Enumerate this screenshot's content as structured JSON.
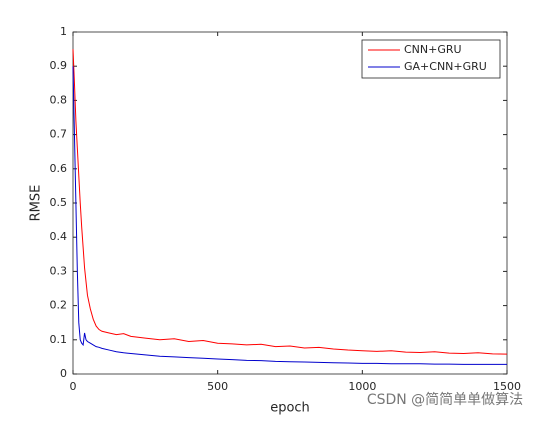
{
  "chart_data": {
    "type": "line",
    "x_label": "epoch",
    "y_label": "RMSE",
    "x": [
      0,
      5,
      10,
      15,
      20,
      25,
      30,
      35,
      40,
      45,
      50,
      60,
      70,
      80,
      90,
      100,
      125,
      150,
      175,
      200,
      250,
      300,
      350,
      400,
      450,
      500,
      550,
      600,
      650,
      700,
      750,
      800,
      850,
      900,
      950,
      1000,
      1050,
      1100,
      1150,
      1200,
      1250,
      1300,
      1350,
      1400,
      1450,
      1500
    ],
    "series": [
      {
        "name": "CNN+GRU",
        "color": "#ff0000",
        "values": [
          0.95,
          0.85,
          0.74,
          0.66,
          0.58,
          0.5,
          0.43,
          0.37,
          0.31,
          0.27,
          0.23,
          0.19,
          0.16,
          0.14,
          0.13,
          0.125,
          0.12,
          0.115,
          0.118,
          0.11,
          0.105,
          0.1,
          0.103,
          0.095,
          0.098,
          0.09,
          0.088,
          0.085,
          0.087,
          0.08,
          0.082,
          0.076,
          0.078,
          0.073,
          0.07,
          0.068,
          0.066,
          0.068,
          0.064,
          0.063,
          0.065,
          0.061,
          0.06,
          0.062,
          0.059,
          0.058
        ]
      },
      {
        "name": "GA+CNN+GRU",
        "color": "#0000cc",
        "values": [
          0.9,
          0.7,
          0.5,
          0.3,
          0.15,
          0.1,
          0.09,
          0.085,
          0.12,
          0.1,
          0.095,
          0.09,
          0.085,
          0.08,
          0.078,
          0.075,
          0.07,
          0.065,
          0.062,
          0.06,
          0.056,
          0.052,
          0.05,
          0.048,
          0.046,
          0.044,
          0.042,
          0.04,
          0.039,
          0.037,
          0.036,
          0.035,
          0.034,
          0.033,
          0.032,
          0.031,
          0.031,
          0.03,
          0.03,
          0.03,
          0.029,
          0.029,
          0.028,
          0.028,
          0.028,
          0.028
        ]
      }
    ],
    "xlim": [
      0,
      1500
    ],
    "xticks": [
      0,
      500,
      1000,
      1500
    ],
    "ylim": [
      0,
      1
    ],
    "yticks": [
      0,
      0.1,
      0.2,
      0.3,
      0.4,
      0.5,
      0.6,
      0.7,
      0.8,
      0.9,
      1
    ],
    "grid": false,
    "legend": "top-right",
    "watermark": "CSDN @简简单单做算法"
  }
}
